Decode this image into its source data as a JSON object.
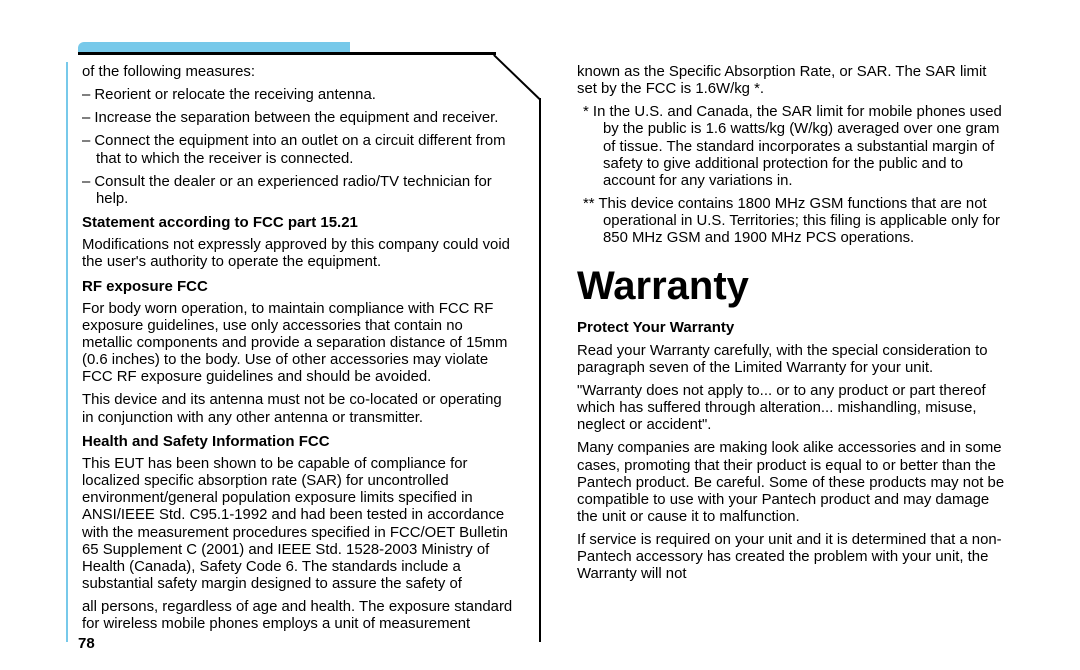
{
  "page_number": "78",
  "colors": {
    "band_blue": "#77c9ea",
    "black": "#000000",
    "bg": "#ffffff"
  },
  "left_col": {
    "intro_line": "of the following measures:",
    "bullets": [
      "– Reorient or relocate the receiving antenna.",
      "– Increase the separation between the equipment and receiver.",
      "– Connect the equipment into an outlet on a circuit different from that to which the receiver is connected.",
      "– Consult the dealer or an experienced radio/TV technician for help."
    ],
    "sec1_head": "Statement according to FCC part 15.21",
    "sec1_body": "Modifications not expressly approved by this company could void the user's authority to operate the equipment.",
    "sec2_head": "RF exposure FCC",
    "sec2_body1": "For body worn operation, to maintain compliance with FCC RF exposure guidelines, use only accessories that contain no metallic components and provide a separation distance of 15mm (0.6 inches) to the body. Use of other accessories may violate FCC RF exposure guidelines and should be avoided.",
    "sec2_body2": "This device and its antenna must not be co-located or operating in conjunction with any other antenna or transmitter.",
    "sec3_head": "Health and Safety Information FCC",
    "sec3_body": "This EUT has been shown to be capable of compliance for localized specific absorption rate (SAR) for uncontrolled environment/general population exposure limits specified in ANSI/IEEE Std. C95.1-1992 and had been tested in accordance with the measurement procedures specified in FCC/OET Bulletin 65 Supplement C (2001) and IEEE Std. 1528-2003 Ministry of Health (Canada), Safety Code 6. The standards include a substantial safety margin designed to assure the safety of"
  },
  "right_col": {
    "cont_body": "all persons, regardless of age and health. The exposure standard for wireless mobile phones employs a unit of measurement known as the Specific Absorption Rate, or SAR. The SAR limit set by the FCC is 1.6W/kg *.",
    "note1": "*  In the U.S. and Canada, the SAR limit for mobile phones used by the public is 1.6 watts/kg (W/kg) averaged over one gram of tissue. The standard incorporates a substantial margin of safety to give additional protection for the public and to account for any variations in.",
    "note2": "** This device contains 1800 MHz GSM functions that are not operational in U.S. Territories; this filing is applicable only for 850 MHz GSM and 1900 MHz PCS operations.",
    "section_title": "Warranty",
    "sec4_head": "Protect Your Warranty",
    "sec4_body1": "Read your Warranty carefully, with the special consideration to paragraph seven of the Limited Warranty for your unit.",
    "sec4_body2": "\"Warranty does not apply to... or to any product or part thereof which has suffered through alteration... mishandling, misuse, neglect or accident\".",
    "sec4_body3": "Many companies are making look alike accessories and in some cases, promoting that their product is equal to or better than the Pantech product. Be careful. Some of these products may not be compatible to use with your Pantech product and may damage the unit or cause it to malfunction.",
    "sec4_body4": "If service is required on your unit and it is determined that a non-Pantech accessory has created the problem with your unit, the Warranty will not"
  }
}
